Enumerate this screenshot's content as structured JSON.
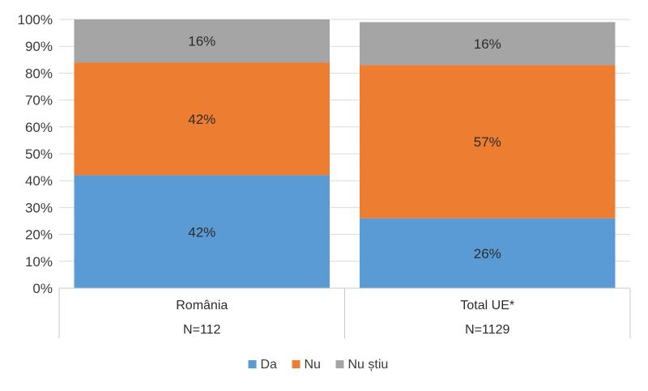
{
  "chart_data": {
    "type": "bar",
    "stacked": true,
    "percent_stacked": true,
    "categories": [
      "România",
      "Total UE*"
    ],
    "category_sublabels": [
      "N=112",
      "N=1129"
    ],
    "series": [
      {
        "name": "Da",
        "values": [
          42,
          26
        ],
        "labels": [
          "42%",
          "26%"
        ],
        "color": "#5b9bd5"
      },
      {
        "name": "Nu",
        "values": [
          42,
          57
        ],
        "labels": [
          "42%",
          "57%"
        ],
        "color": "#ed7d31"
      },
      {
        "name": "Nu știu",
        "values": [
          16,
          16
        ],
        "labels": [
          "16%",
          "16%"
        ],
        "color": "#a5a5a5"
      }
    ],
    "yticks": [
      "0%",
      "10%",
      "20%",
      "30%",
      "40%",
      "50%",
      "60%",
      "70%",
      "80%",
      "90%",
      "100%"
    ],
    "ylim": [
      0,
      100
    ],
    "grid": true,
    "legend_position": "bottom",
    "title": "",
    "xlabel": "",
    "ylabel": ""
  }
}
